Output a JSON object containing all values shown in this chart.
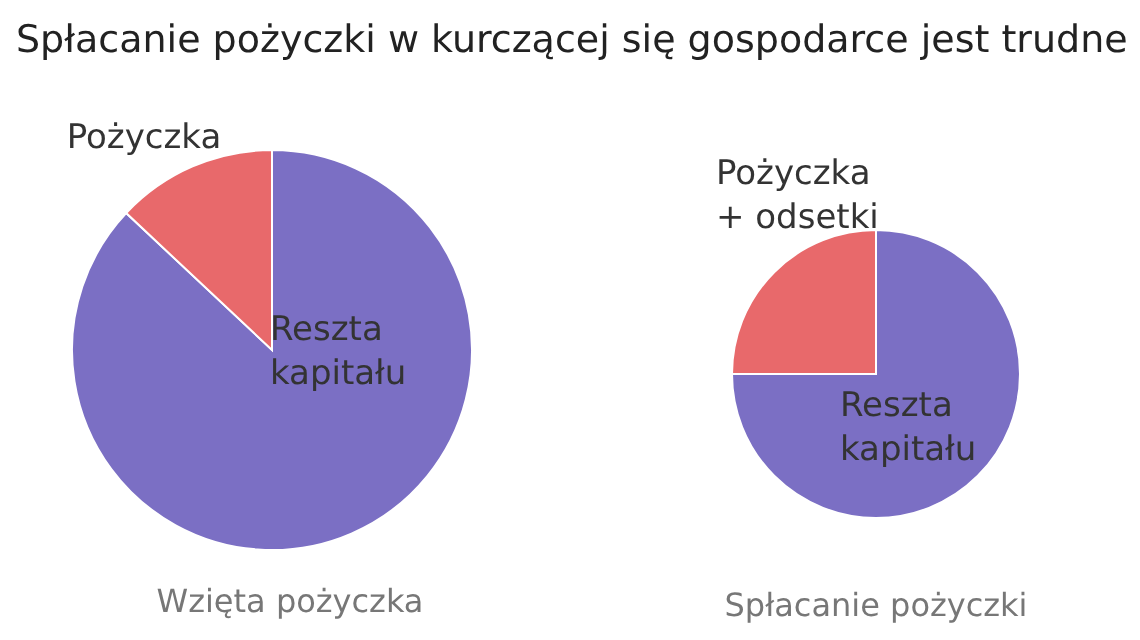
{
  "chart_data": [
    {
      "type": "pie",
      "title": "Spłacanie pożyczki w kurczącej się gospodarce jest trudne",
      "xlabel": "Wzięta pożyczka",
      "categories": [
        "Reszta kapitału",
        "Pożyczka"
      ],
      "values": [
        87,
        13
      ],
      "colors": [
        "#7b6fc4",
        "#e8696b"
      ]
    },
    {
      "type": "pie",
      "xlabel": "Spłacanie pożyczki",
      "categories": [
        "Reszta kapitału",
        "Pożyczka + odsetki"
      ],
      "values": [
        75,
        25
      ],
      "colors": [
        "#7b6fc4",
        "#e8696b"
      ]
    }
  ]
}
